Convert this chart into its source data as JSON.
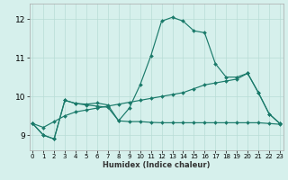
{
  "xlabel": "Humidex (Indice chaleur)",
  "xlim": [
    -0.3,
    23.3
  ],
  "ylim": [
    8.6,
    12.4
  ],
  "yticks": [
    9,
    10,
    11,
    12
  ],
  "xticks": [
    0,
    1,
    2,
    3,
    4,
    5,
    6,
    7,
    8,
    9,
    10,
    11,
    12,
    13,
    14,
    15,
    16,
    17,
    18,
    19,
    20,
    21,
    22,
    23
  ],
  "bg_color": "#d6f0ec",
  "line_color": "#1a7a6a",
  "grid_color": "#b8dcd6",
  "line1_x": [
    0,
    1,
    2,
    3,
    4,
    5,
    6,
    7,
    8,
    9,
    10,
    11,
    12,
    13,
    14,
    15,
    16,
    17,
    18,
    19,
    20,
    21,
    22,
    23
  ],
  "line1_y": [
    9.3,
    9.0,
    8.9,
    9.9,
    9.82,
    9.8,
    9.83,
    9.78,
    9.37,
    9.7,
    10.3,
    11.05,
    11.95,
    12.05,
    11.95,
    11.7,
    11.65,
    10.85,
    10.5,
    10.5,
    10.6,
    10.1,
    9.55,
    9.3
  ],
  "line2_x": [
    0,
    1,
    2,
    3,
    4,
    5,
    6,
    7,
    8,
    9,
    10,
    11,
    12,
    13,
    14,
    15,
    16,
    17,
    18,
    19,
    20,
    21,
    22,
    23
  ],
  "line2_y": [
    9.3,
    9.2,
    9.35,
    9.5,
    9.6,
    9.65,
    9.7,
    9.75,
    9.8,
    9.85,
    9.9,
    9.95,
    10.0,
    10.05,
    10.1,
    10.2,
    10.3,
    10.35,
    10.4,
    10.45,
    10.6,
    10.1,
    9.55,
    9.3
  ],
  "line3_x": [
    0,
    1,
    2,
    3,
    4,
    5,
    6,
    7,
    8,
    9,
    10,
    11,
    12,
    13,
    14,
    15,
    16,
    17,
    18,
    19,
    20,
    21,
    22,
    23
  ],
  "line3_y": [
    9.3,
    9.0,
    8.9,
    9.9,
    9.82,
    9.78,
    9.75,
    9.72,
    9.37,
    9.35,
    9.35,
    9.33,
    9.32,
    9.32,
    9.32,
    9.32,
    9.32,
    9.32,
    9.32,
    9.32,
    9.32,
    9.32,
    9.3,
    9.28
  ]
}
